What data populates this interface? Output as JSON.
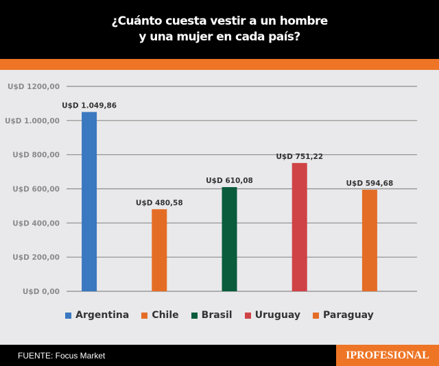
{
  "header": {
    "title_line1": "¿Cuánto cuesta vestir a un hombre",
    "title_line2": "y una mujer en cada país?"
  },
  "chart_data": {
    "type": "bar",
    "title": "¿Cuánto cuesta vestir a un hombre y una mujer en cada país?",
    "categories": [
      "Argentina",
      "Chile",
      "Brasil",
      "Uruguay",
      "Paraguay"
    ],
    "values": [
      1049.86,
      480.58,
      610.08,
      751.22,
      594.68
    ],
    "data_labels": [
      "U$D 1.049,86",
      "U$D 480,58",
      "U$D 610,08",
      "U$D 751,22",
      "U$D 594,68"
    ],
    "colors": [
      "#3a78c0",
      "#e46d25",
      "#0a5c3c",
      "#cf4346",
      "#e46d25"
    ],
    "yticks": [
      0,
      200,
      400,
      600,
      800,
      1000,
      1200
    ],
    "ytick_labels": [
      "U$D 0,00",
      "U$D 200,00",
      "U$D 400,00",
      "U$D 600,00",
      "U$D 800,00",
      "U$D 1.000,00",
      "U$D 1200,00"
    ],
    "ylim": [
      0,
      1200
    ],
    "grid": true,
    "legend_position": "bottom",
    "xlabel": "",
    "ylabel": ""
  },
  "footer": {
    "source": "FUENTE: Focus Market",
    "logo": "IPROFESIONAL"
  }
}
